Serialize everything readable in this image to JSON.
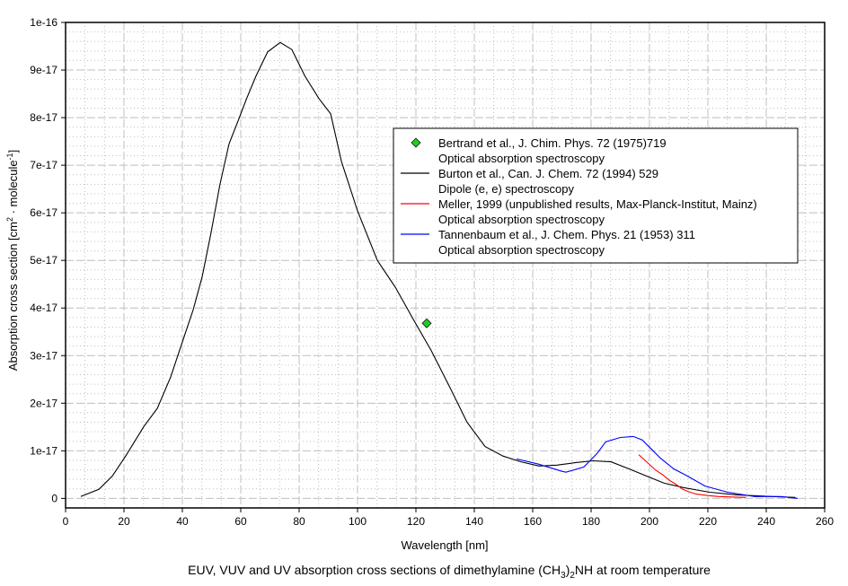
{
  "chart_data": {
    "type": "line",
    "title": "",
    "caption": "EUV, VUV and UV absorption cross sections of dimethylamine (CH3)2NH at room temperature",
    "caption_parts": {
      "pre": "EUV, VUV and UV absorption cross sections of dimethylamine (CH",
      "sub1": "3",
      "mid": ")",
      "sub2": "2",
      "post": "NH at room temperature"
    },
    "xlabel": "Wavelength [nm]",
    "ylabel": "Absorption cross section [cm2 · molecule-1]",
    "ylabel_parts": {
      "pre": "Absorption cross section [cm",
      "sup1": "2",
      "mid": " · molecule",
      "sup2": "-1",
      "post": "]"
    },
    "xlim": [
      0,
      260
    ],
    "ylim": [
      -2e-18,
      1e-16
    ],
    "grid": true,
    "legend_position": "upper-right",
    "x_ticks": [
      "0",
      "20",
      "40",
      "60",
      "80",
      "100",
      "120",
      "140",
      "160",
      "180",
      "200",
      "220",
      "240",
      "260"
    ],
    "y_ticks": [
      "0",
      "1e-17",
      "2e-17",
      "3e-17",
      "4e-17",
      "5e-17",
      "6e-17",
      "7e-17",
      "8e-17",
      "9e-17",
      "1e-16"
    ],
    "series": [
      {
        "name": "Bertrand et al., J. Chim. Phys. 72 (1975)719",
        "method": "Optical absorption spectroscopy",
        "type": "scatter",
        "color": "#22cc22",
        "x": [
          123.7
        ],
        "y": [
          3.68e-17
        ]
      },
      {
        "name": "Burton et al., Can. J. Chem. 72 (1994) 529",
        "method": "Dipole (e, e) spectroscopy",
        "type": "line",
        "color": "#000000",
        "x": [
          5.2,
          11.4,
          16,
          20.6,
          26.8,
          31.4,
          36,
          40.6,
          43.7,
          46.8,
          49.8,
          52.9,
          56,
          59,
          62,
          65.2,
          69.2,
          73.5,
          77.5,
          82,
          86.8,
          90.8,
          94.5,
          100,
          106.8,
          113,
          119,
          125.2,
          131.4,
          137.5,
          143.7,
          149.8,
          156,
          162.2,
          168.3,
          174.5,
          180.6,
          186.8,
          193,
          199,
          205,
          211.4,
          220.6,
          229.8,
          242,
          250
        ],
        "y": [
          4e-19,
          1.9e-18,
          4.7e-18,
          8.9e-18,
          1.51e-17,
          1.89e-17,
          2.55e-17,
          3.4e-17,
          3.96e-17,
          4.66e-17,
          5.57e-17,
          6.6e-17,
          7.45e-17,
          7.92e-17,
          8.4e-17,
          8.87e-17,
          9.38e-17,
          9.58e-17,
          9.43e-17,
          8.87e-17,
          8.4e-17,
          8.08e-17,
          7.08e-17,
          6.04e-17,
          5e-17,
          4.43e-17,
          3.77e-17,
          3.11e-17,
          2.36e-17,
          1.6e-17,
          1.09e-17,
          8.9e-18,
          7.7e-18,
          6.8e-18,
          7e-18,
          7.5e-18,
          7.9e-18,
          7.7e-18,
          6.2e-18,
          4.7e-18,
          3.2e-18,
          2.3e-18,
          1.3e-18,
          7.5e-19,
          4e-19,
          2e-19
        ]
      },
      {
        "name": "Meller, 1999 (unpublished results, Max-Planck-Institut, Mainz)",
        "method": "Optical absorption spectroscopy",
        "type": "line",
        "color": "#ff0000",
        "x": [
          196.3,
          199,
          202,
          204.5,
          206.8,
          209,
          211.4,
          213.5,
          216,
          220,
          223.7,
          228,
          233
        ],
        "y": [
          9.2e-18,
          7.7e-18,
          6e-18,
          5e-18,
          3.8e-18,
          3e-18,
          1.9e-18,
          1.4e-18,
          9e-19,
          6e-19,
          4e-19,
          3e-19,
          2e-19
        ]
      },
      {
        "name": "Tannenbaum et al., J. Chem. Phys. 21 (1953) 311",
        "method": "Optical absorption spectroscopy",
        "type": "line",
        "color": "#0000ff",
        "x": [
          154.5,
          162,
          170,
          171.4,
          177.5,
          182,
          185,
          190,
          194.5,
          197.5,
          200.6,
          203.7,
          208.3,
          213,
          219,
          226.8,
          236,
          245,
          250.8
        ],
        "y": [
          8.3e-18,
          7.2e-18,
          5.7e-18,
          5.5e-18,
          6.6e-18,
          9.4e-18,
          1.19e-17,
          1.28e-17,
          1.3e-17,
          1.23e-17,
          1.04e-17,
          8.5e-18,
          6.2e-18,
          4.7e-18,
          2.6e-18,
          1.3e-18,
          4e-19,
          4e-19,
          0.0
        ]
      }
    ]
  }
}
